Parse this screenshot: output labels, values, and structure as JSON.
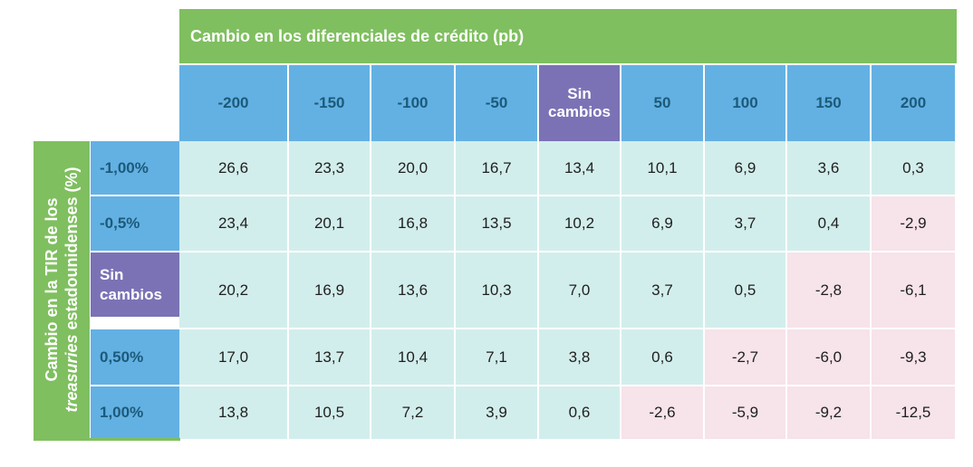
{
  "banner_title": "Cambio en los diferenciales de crédito (pb)",
  "vertical_label": {
    "line1": "Cambio en la TIR de los",
    "line2_italic": "treasuries",
    "line2_rest": " estadounidenses (%)"
  },
  "column_headers": [
    "-200",
    "-150",
    "-100",
    "-50",
    "Sin cambios",
    "50",
    "100",
    "150",
    "200"
  ],
  "rows": [
    {
      "label": "-1,00%",
      "values": [
        "26,6",
        "23,3",
        "20,0",
        "16,7",
        "13,4",
        "10,1",
        "6,9",
        "3,6",
        "0,3"
      ]
    },
    {
      "label": "-0,5%",
      "values": [
        "23,4",
        "20,1",
        "16,8",
        "13,5",
        "10,2",
        "6,9",
        "3,7",
        "0,4",
        "-2,9"
      ]
    },
    {
      "label": "Sin cambios",
      "values": [
        "20,2",
        "16,9",
        "13,6",
        "10,3",
        "7,0",
        "3,7",
        "0,5",
        "-2,8",
        "-6,1"
      ]
    },
    {
      "label": "0,50%",
      "values": [
        "17,0",
        "13,7",
        "10,4",
        "7,1",
        "3,8",
        "0,6",
        "-2,7",
        "-6,0",
        "-9,3"
      ]
    },
    {
      "label": "1,00%",
      "values": [
        "13,8",
        "10,5",
        "7,2",
        "3,9",
        "0,6",
        "-2,6",
        "-5,9",
        "-9,2",
        "-12,5"
      ]
    }
  ],
  "colors": {
    "green": "#7fbf5f",
    "blue_header": "#63b1e3",
    "purple_highlight": "#7b72b6",
    "positive_fill": "#d2eeec",
    "negative_fill": "#f7e3ea"
  }
}
